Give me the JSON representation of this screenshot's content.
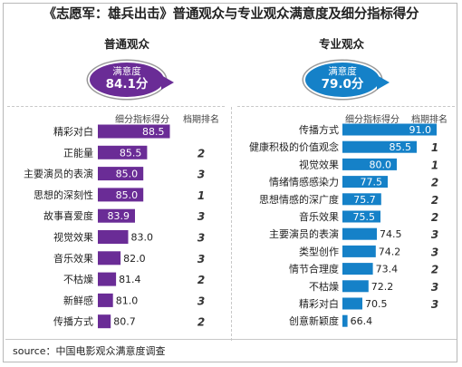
{
  "title": "《志愿军：雄兵出击》普通观众与专业观众满意度及细分指标得分",
  "source": "source：中国电影观众满意度调查",
  "colors": {
    "ordinary": "#6a2c96",
    "professional": "#1581c8"
  },
  "ordinary": {
    "heading": "普通观众",
    "bubble_label": "满意度",
    "bubble_value": "84.1分",
    "col_score": "细分指标得分",
    "col_rank": "档期排名"
  },
  "professional": {
    "heading": "专业观众",
    "bubble_label": "满意度",
    "bubble_value": "79.0分",
    "col_score": "细分指标得分",
    "col_rank": "档期排名"
  },
  "chart_data": [
    {
      "type": "bar",
      "orientation": "horizontal",
      "title": "普通观众",
      "categories": [
        "精彩对白",
        "正能量",
        "主要演员的表演",
        "思想的深刻性",
        "故事喜爱度",
        "视觉效果",
        "音乐效果",
        "不枯燥",
        "新鲜感",
        "传播方式"
      ],
      "values": [
        88.5,
        85.5,
        85.0,
        85.0,
        83.9,
        83.0,
        82.0,
        81.4,
        81.0,
        80.7
      ],
      "labels": [
        "88.5",
        "85.5",
        "85.0",
        "85.0",
        "83.9",
        "83.0",
        "82.0",
        "81.4",
        "81.0",
        "80.7"
      ],
      "ranks": [
        "",
        "2",
        "3",
        "1",
        "3",
        "3",
        "3",
        "2",
        "3",
        "2"
      ],
      "xlim": [
        79.0,
        90.0
      ]
    },
    {
      "type": "bar",
      "orientation": "horizontal",
      "title": "专业观众",
      "categories": [
        "传播方式",
        "健康积极的价值观念",
        "视觉效果",
        "情绪情感感染力",
        "思想情感的深广度",
        "音乐效果",
        "主要演员的表演",
        "类型创作",
        "情节合理度",
        "不枯燥",
        "精彩对白",
        "创意新颖度"
      ],
      "values": [
        91.0,
        85.5,
        80.0,
        77.5,
        75.7,
        75.5,
        74.5,
        74.2,
        73.4,
        72.2,
        70.5,
        66.4
      ],
      "labels": [
        "91.0",
        "85.5",
        "80.0",
        "77.5",
        "75.7",
        "75.5",
        "74.5",
        "74.2",
        "73.4",
        "72.2",
        "70.5",
        "66.4"
      ],
      "ranks": [
        "",
        "1",
        "1",
        "2",
        "2",
        "2",
        "3",
        "3",
        "2",
        "3",
        "3",
        ""
      ],
      "xlim": [
        65.0,
        94.5
      ]
    }
  ]
}
